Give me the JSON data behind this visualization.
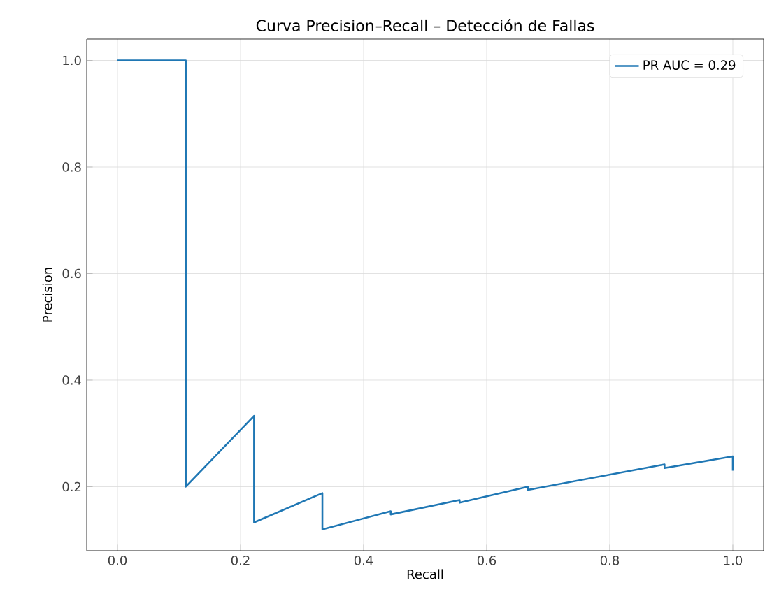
{
  "chart_data": {
    "type": "line",
    "title": "Curva Precision–Recall – Detección de Fallas",
    "xlabel": "Recall",
    "ylabel": "Precision",
    "series": [
      {
        "name": "PR AUC = 0.29",
        "color": "#1f77b4",
        "x": [
          0,
          0.111,
          0.111,
          0.222,
          0.222,
          0.333,
          0.333,
          0.444,
          0.444,
          0.556,
          0.556,
          0.667,
          0.667,
          0.889,
          0.889,
          1.0,
          1.0
        ],
        "values": [
          1.0,
          1.0,
          0.2,
          0.333,
          0.133,
          0.188,
          0.12,
          0.154,
          0.148,
          0.175,
          0.17,
          0.2,
          0.194,
          0.242,
          0.235,
          0.257,
          0.23
        ]
      }
    ],
    "xlim": [
      -0.05,
      1.05
    ],
    "ylim": [
      0.08,
      1.04
    ],
    "xticks": [
      {
        "value": 0,
        "label": "0.0"
      },
      0.2,
      0.4,
      0.6,
      0.8,
      {
        "value": 1,
        "label": "1.0"
      }
    ],
    "yticks": [
      0.2,
      0.4,
      0.6,
      0.8,
      {
        "value": 1,
        "label": "1.0"
      }
    ],
    "grid": true,
    "legend": "top right"
  }
}
